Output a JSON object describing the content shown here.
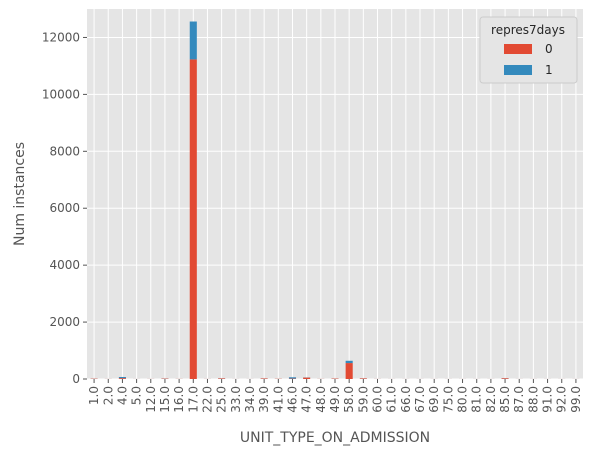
{
  "chart_data": {
    "type": "bar",
    "stacked": true,
    "title": "",
    "xlabel": "UNIT_TYPE_ON_ADMISSION",
    "ylabel": "Num instances",
    "ylim": [
      0,
      13000
    ],
    "yticks": [
      0,
      2000,
      4000,
      6000,
      8000,
      10000,
      12000
    ],
    "grid": true,
    "legend_title": "repres7days",
    "legend_position": "top-right",
    "categories": [
      "1.0",
      "2.0",
      "4.0",
      "5.0",
      "12.0",
      "15.0",
      "16.0",
      "17.0",
      "22.0",
      "25.0",
      "33.0",
      "34.0",
      "39.0",
      "41.0",
      "46.0",
      "47.0",
      "48.0",
      "49.0",
      "58.0",
      "59.0",
      "60.0",
      "61.0",
      "66.0",
      "67.0",
      "69.0",
      "75.0",
      "80.0",
      "81.0",
      "82.0",
      "85.0",
      "87.0",
      "88.0",
      "91.0",
      "92.0",
      "99.0"
    ],
    "series": [
      {
        "name": "0",
        "color": "#E24A33",
        "values": [
          12,
          3,
          30,
          2,
          3,
          15,
          4,
          11230,
          3,
          20,
          2,
          2,
          18,
          8,
          15,
          50,
          4,
          15,
          560,
          20,
          3,
          2,
          2,
          2,
          2,
          2,
          2,
          2,
          2,
          25,
          2,
          2,
          2,
          2,
          2
        ]
      },
      {
        "name": "1",
        "color": "#348ABD",
        "values": [
          2,
          1,
          40,
          1,
          1,
          3,
          1,
          1330,
          1,
          3,
          1,
          1,
          2,
          1,
          45,
          5,
          1,
          1,
          80,
          2,
          1,
          1,
          1,
          1,
          1,
          1,
          1,
          1,
          1,
          3,
          1,
          1,
          1,
          1,
          1
        ]
      }
    ]
  }
}
